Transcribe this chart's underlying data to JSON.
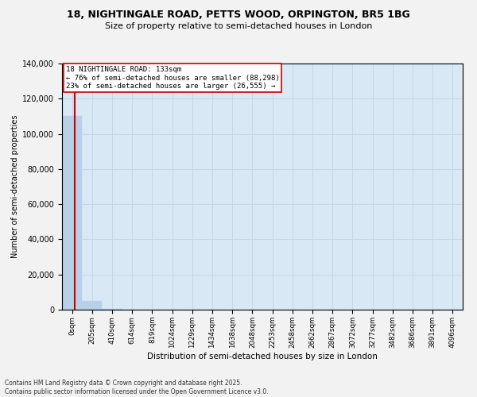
{
  "title": "18, NIGHTINGALE ROAD, PETTS WOOD, ORPINGTON, BR5 1BG",
  "subtitle": "Size of property relative to semi-detached houses in London",
  "xlabel": "Distribution of semi-detached houses by size in London",
  "ylabel": "Number of semi-detached properties",
  "property_size": 133,
  "annotation_title": "18 NIGHTINGALE ROAD: 133sqm",
  "annotation_line1": "← 76% of semi-detached houses are smaller (88,298)",
  "annotation_line2": "23% of semi-detached houses are larger (26,555) →",
  "bin_labels": [
    "0sqm",
    "205sqm",
    "410sqm",
    "614sqm",
    "819sqm",
    "1024sqm",
    "1229sqm",
    "1434sqm",
    "1638sqm",
    "2048sqm",
    "2253sqm",
    "2458sqm",
    "2662sqm",
    "2867sqm",
    "3072sqm",
    "3277sqm",
    "3482sqm",
    "3686sqm",
    "3891sqm",
    "4096sqm"
  ],
  "bar_values": [
    110000,
    5000,
    400,
    150,
    80,
    40,
    20,
    12,
    8,
    5,
    4,
    3,
    2,
    2,
    1,
    1,
    1,
    1,
    0,
    0
  ],
  "bar_color": "#b8d0e8",
  "bar_edge_color": "#b8d0e8",
  "grid_color": "#c0d4e8",
  "background_color": "#d8e8f4",
  "annotation_box_color": "#ffffff",
  "annotation_box_edge": "#cc0000",
  "vline_color": "#cc0000",
  "ylim": [
    0,
    140000
  ],
  "yticks": [
    0,
    20000,
    40000,
    60000,
    80000,
    100000,
    120000,
    140000
  ],
  "footer_line1": "Contains HM Land Registry data © Crown copyright and database right 2025.",
  "footer_line2": "Contains public sector information licensed under the Open Government Licence v3.0."
}
